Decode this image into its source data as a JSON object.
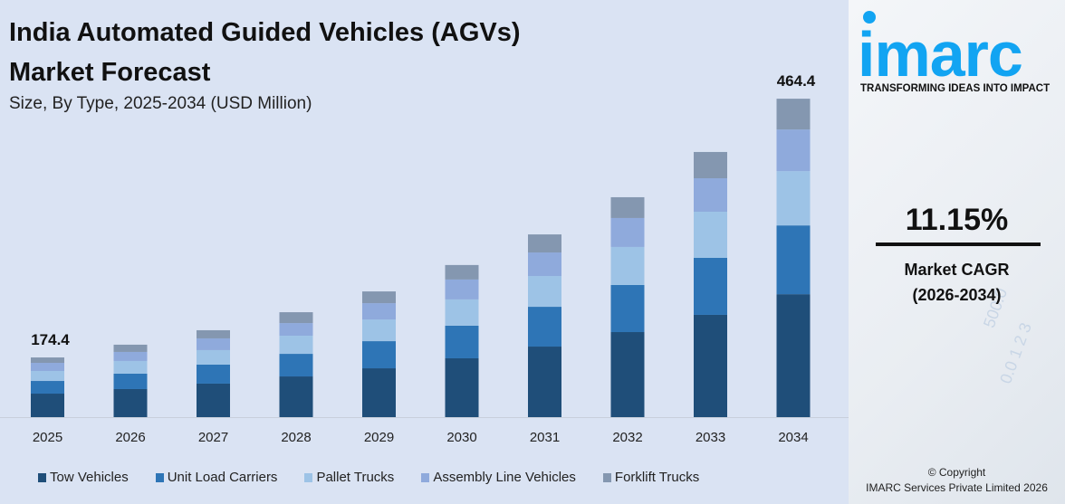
{
  "header": {
    "title_line1": "India Automated Guided Vehicles (AGVs)",
    "title_line2": "Market Forecast",
    "subtitle": "Size, By Type, 2025-2034 (USD Million)"
  },
  "brand": {
    "logo_text": "imarc",
    "tagline": "TRANSFORMING IDEAS INTO IMPACT",
    "logo_color": "#12a4f2"
  },
  "stat": {
    "cagr": "11.15%",
    "label_line1": "Market CAGR",
    "label_line2": "(2026-2034)"
  },
  "footer": {
    "line1": "© Copyright",
    "line2": "IMARC Services Private Limited 2026"
  },
  "chart_data": {
    "type": "bar",
    "stacked": true,
    "title": "India Automated Guided Vehicles (AGVs) Market Forecast",
    "subtitle": "Size, By Type, 2025-2034 (USD Million)",
    "categories": [
      "2025",
      "2026",
      "2027",
      "2028",
      "2029",
      "2030",
      "2031",
      "2032",
      "2033",
      "2034"
    ],
    "series": [
      {
        "name": "Tow Vehicles",
        "color": "#1f4e79",
        "values": [
          68.7,
          73.1,
          79.0,
          87.3,
          96.5,
          107.5,
          120.6,
          136.9,
          156.1,
          179.3
        ]
      },
      {
        "name": "Unit Load Carriers",
        "color": "#2e75b6",
        "values": [
          37.0,
          40.1,
          44.8,
          48.5,
          53.6,
          59.6,
          68.0,
          75.8,
          87.0,
          100.3
        ]
      },
      {
        "name": "Pallet Trucks",
        "color": "#9dc3e6",
        "values": [
          29.1,
          33.0,
          34.2,
          38.8,
          42.9,
          48.0,
          52.6,
          61.2,
          70.4,
          79.2
        ]
      },
      {
        "name": "Assembly Line Vehicles",
        "color": "#8faadc",
        "values": [
          23.8,
          23.6,
          27.7,
          27.2,
          32.2,
          36.4,
          40.2,
          46.6,
          51.1,
          60.7
        ]
      },
      {
        "name": "Forklift Trucks",
        "color": "#8497b0",
        "values": [
          15.8,
          18.9,
          19.2,
          23.3,
          23.2,
          26.5,
          30.9,
          33.5,
          40.1,
          44.9
        ]
      }
    ],
    "data_labels": [
      {
        "category": "2025",
        "text": "174.4"
      },
      {
        "category": "2034",
        "text": "464.4"
      }
    ],
    "grid": false,
    "legend_position": "bottom",
    "background": "#dae3f3"
  }
}
